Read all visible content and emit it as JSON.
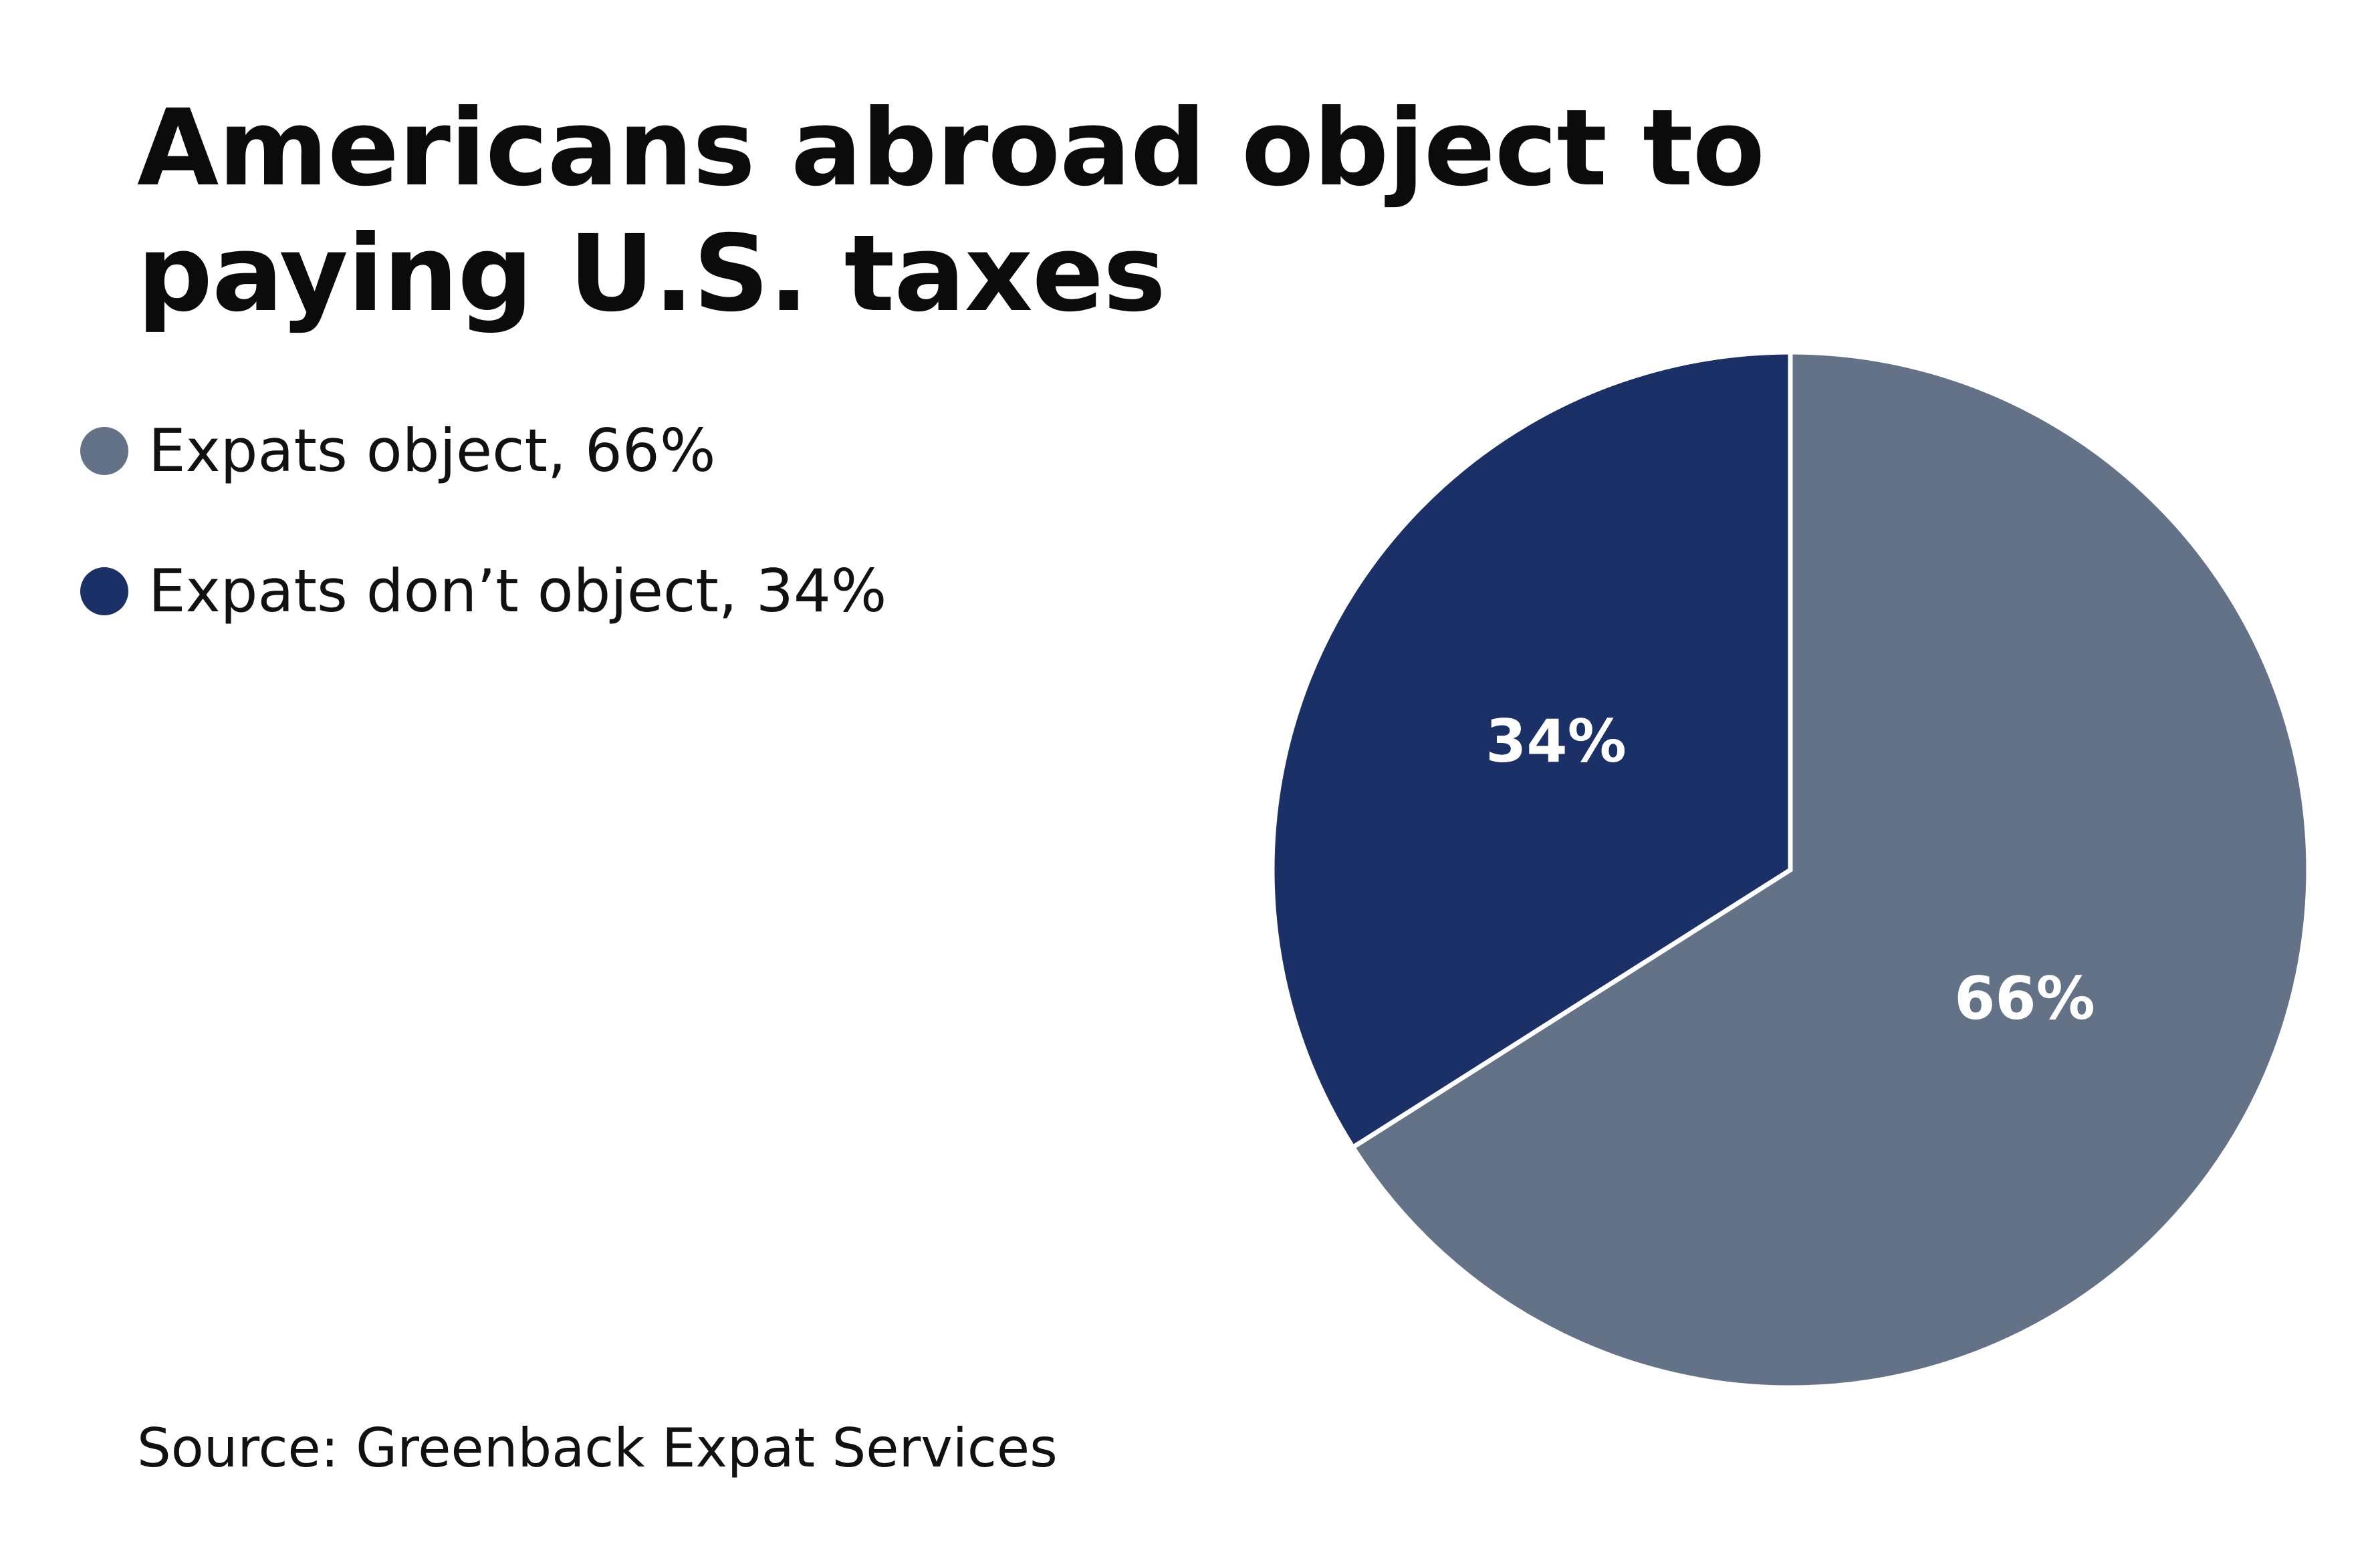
{
  "title": "Americans abroad object to paying U.S. taxes",
  "source": "Source: Greenback Expat Services",
  "legend": [
    {
      "label": "Expats object, 66%",
      "color": "#637286"
    },
    {
      "label": "Expats don’t object, 34%",
      "color": "#1a3066"
    }
  ],
  "chart_data": {
    "type": "pie",
    "title": "Americans abroad object to paying U.S. taxes",
    "slices": [
      {
        "label": "Expats object",
        "value": 66,
        "display": "66%",
        "color": "#637286"
      },
      {
        "label": "Expats don’t object",
        "value": 34,
        "display": "34%",
        "color": "#1a3066"
      }
    ],
    "legend_position": "top-left",
    "start": "12 o'clock, clockwise"
  }
}
